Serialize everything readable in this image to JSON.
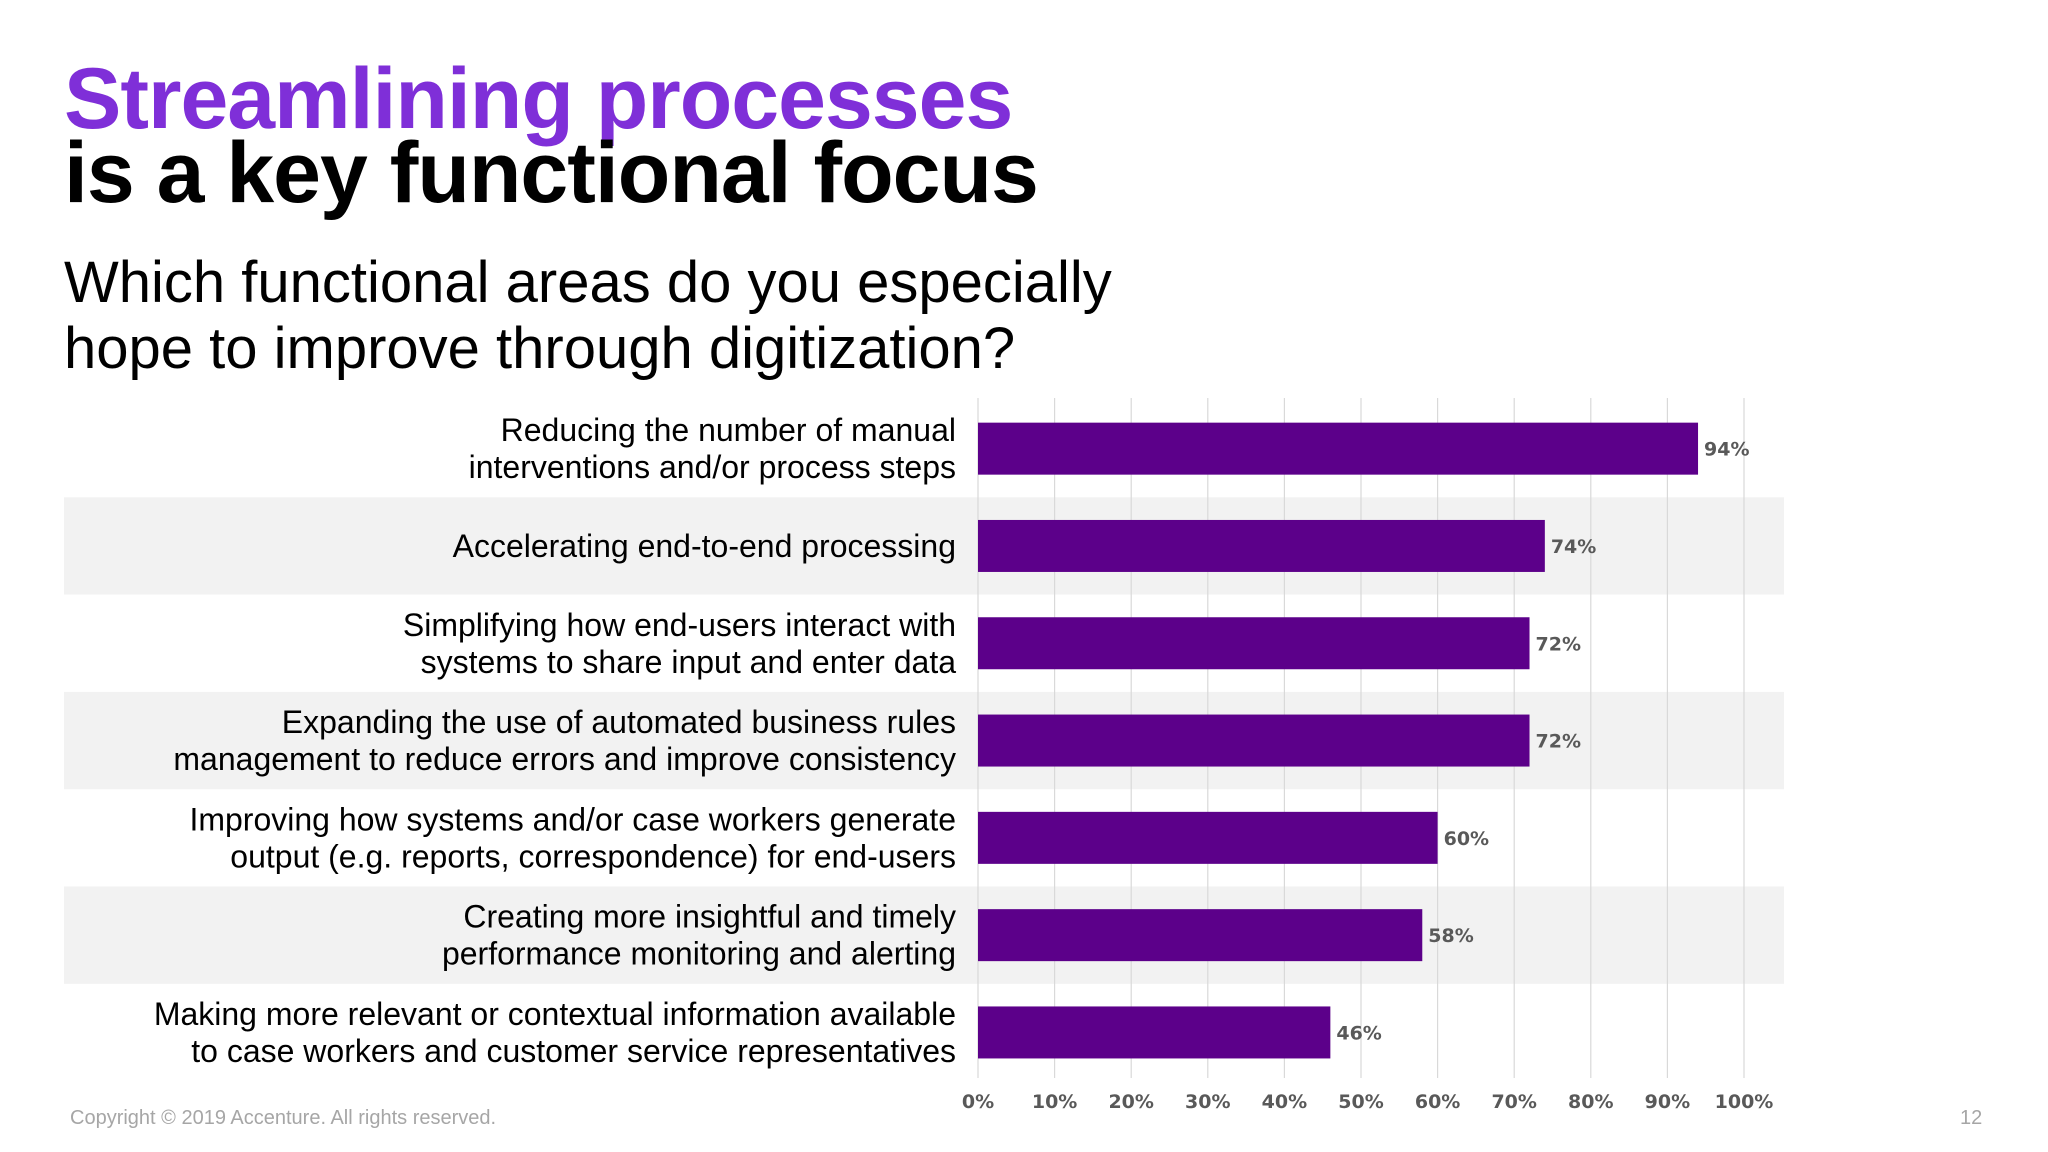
{
  "slide": {
    "title_line1": "Streamlining processes",
    "title_line2": "is a key functional focus",
    "question_line1": "Which functional areas do you especially",
    "question_line2": "hope to improve through digitization?",
    "copyright": "Copyright © 2019 Accenture. All rights reserved.",
    "page_number": "12"
  },
  "colors": {
    "title_accent": "#7f2fd8",
    "bar": "#5c008a",
    "band": "#f2f2f2",
    "footer_text": "#a6a6a6"
  },
  "chart_data": {
    "type": "bar",
    "orientation": "horizontal",
    "categories": [
      [
        "Reducing the number of manual",
        "interventions and/or process steps"
      ],
      [
        "Accelerating end-to-end processing"
      ],
      [
        "Simplifying how end-users interact with",
        "systems to share input and enter data"
      ],
      [
        "Expanding the use of automated business rules",
        "management to reduce errors and improve consistency"
      ],
      [
        "Improving how systems and/or case workers generate",
        "output (e.g. reports, correspondence) for end-users"
      ],
      [
        "Creating more insightful and timely",
        "performance monitoring and alerting"
      ],
      [
        "Making more relevant or contextual information available",
        "to case workers and customer service representatives"
      ]
    ],
    "values": [
      94,
      74,
      72,
      72,
      60,
      58,
      46
    ],
    "data_labels": [
      "94%",
      "74%",
      "72%",
      "72%",
      "60%",
      "58%",
      "46%"
    ],
    "x_ticks": [
      "0%",
      "10%",
      "20%",
      "30%",
      "40%",
      "50%",
      "60%",
      "70%",
      "80%",
      "90%",
      "100%"
    ],
    "xlim": [
      0,
      100
    ],
    "grid": true,
    "legend": "none"
  }
}
